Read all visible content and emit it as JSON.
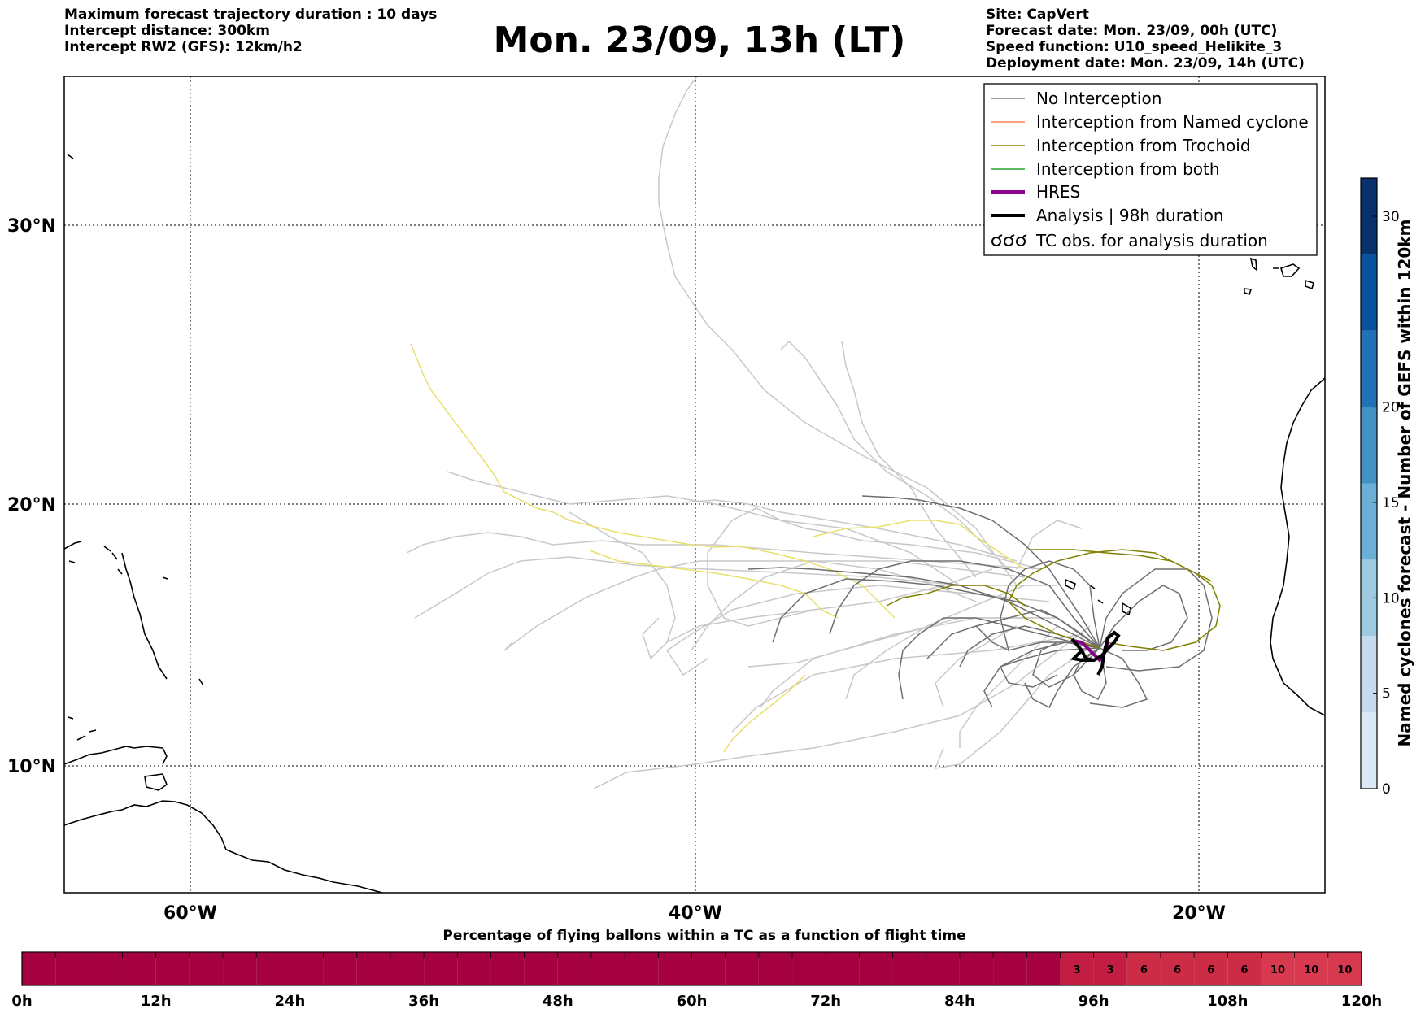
{
  "header": {
    "left": [
      "Maximum forecast trajectory duration : 10 days",
      "Intercept distance: 300km",
      "Intercept RW2 (GFS):  12km/h2"
    ],
    "title": "Mon. 23/09, 13h (LT)",
    "right": [
      "Site: CapVert",
      "Forecast date: Mon. 23/09, 00h (UTC)",
      "Speed function: U10_speed_Helikite_3",
      "Deployment date: Mon. 23/09, 14h (UTC)"
    ]
  },
  "map": {
    "lat_labels": [
      "30°N",
      "20°N",
      "10°N"
    ],
    "lon_labels": [
      "60°W",
      "40°W",
      "20°W"
    ],
    "lon_range": [
      -65,
      -15
    ],
    "lat_range": [
      5.5,
      35
    ],
    "grid": "dotted"
  },
  "legend": {
    "items": [
      {
        "label": "No Interception",
        "color": "#7f7f7f"
      },
      {
        "label": "Interception from Named cyclone",
        "color": "#ff7f50"
      },
      {
        "label": "Interception from Trochoid",
        "color": "#808000"
      },
      {
        "label": "Interception from both",
        "color": "#2ca02c"
      },
      {
        "label": "HRES",
        "color": "#8b008b"
      },
      {
        "label": "Analysis | 98h duration",
        "color": "#000000"
      },
      {
        "label": "TC obs. for analysis duration",
        "color": "#000000",
        "icon": "cyclone-symbols-icon"
      }
    ]
  },
  "colorbar": {
    "label": "Named cyclones forecast - Number of GEFS within 120km",
    "ticks": [
      "0",
      "5",
      "10",
      "15",
      "20",
      "30"
    ],
    "tick_values": [
      0,
      5,
      10,
      15,
      20,
      30
    ],
    "range": [
      0,
      32
    ],
    "colors": [
      "#dbe9f6",
      "#c6dbef",
      "#9ecae1",
      "#6baed6",
      "#4292c6",
      "#2171b5",
      "#08519c",
      "#08306b"
    ]
  },
  "timebar": {
    "title": "Percentage of flying ballons within a TC as a function of flight time",
    "ticks": [
      "0h",
      "12h",
      "24h",
      "36h",
      "48h",
      "60h",
      "72h",
      "84h",
      "96h",
      "108h",
      "120h"
    ],
    "cells": [
      "",
      "",
      "",
      "",
      "",
      "",
      "",
      "",
      "",
      "",
      "",
      "",
      "",
      "",
      "",
      "",
      "",
      "",
      "",
      "",
      "",
      "",
      "",
      "",
      "",
      "",
      "",
      "",
      "",
      "",
      "",
      "3",
      "3",
      "6",
      "6",
      "6",
      "6",
      "10",
      "10",
      "10"
    ],
    "base_color": "#a50040",
    "colors": {
      "3": "#c21d42",
      "6": "#cd2c47",
      "10": "#d7394f"
    }
  }
}
